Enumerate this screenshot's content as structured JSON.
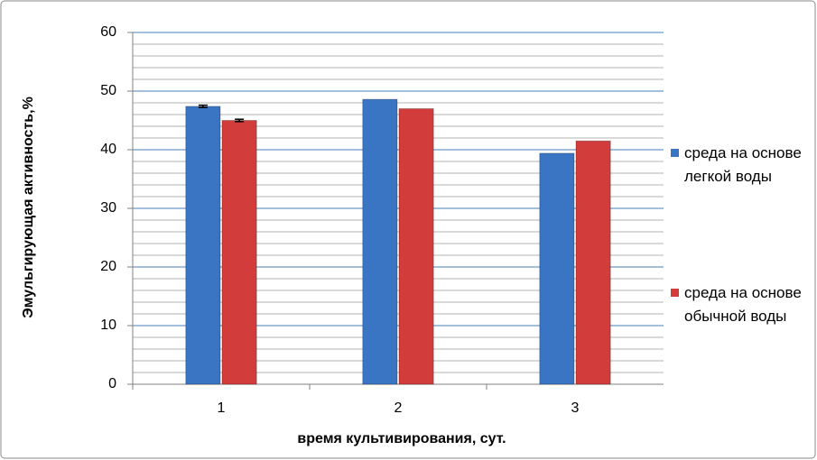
{
  "chart_data": {
    "type": "bar",
    "y_label": "Эмульгирующая активность,%",
    "x_label": "время культивирования, сут.",
    "categories": [
      "1",
      "2",
      "3"
    ],
    "series": [
      {
        "name": "среда на основе легкой воды",
        "color": "#3a75c4",
        "values": [
          47.4,
          48.6,
          39.4
        ],
        "errors": [
          0.2,
          null,
          null
        ]
      },
      {
        "name": "среда на основе обычной воды",
        "color": "#d23c3a",
        "values": [
          45,
          47,
          41.5
        ],
        "errors": [
          0.2,
          null,
          null
        ]
      }
    ],
    "ylim": [
      0,
      60
    ],
    "yticks": [
      0,
      10,
      20,
      30,
      40,
      50,
      60
    ],
    "minor_yticks": [
      2,
      4,
      6,
      8,
      12,
      14,
      16,
      18,
      22,
      24,
      26,
      28,
      32,
      34,
      36,
      38,
      42,
      44,
      46,
      48,
      52,
      54,
      56,
      58
    ],
    "grid": true,
    "legend": "right"
  }
}
